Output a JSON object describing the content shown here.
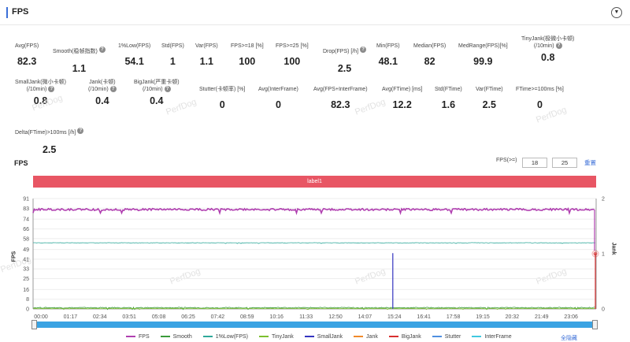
{
  "header": {
    "title": "FPS",
    "collapse_icon": "chevron-down-icon"
  },
  "metrics_row1": [
    {
      "label": "Avg(FPS)",
      "value": "82.3",
      "help": false
    },
    {
      "label": "Smooth(稳帧指数)",
      "value": "1.1",
      "help": true
    },
    {
      "label": "1%Low(FPS)",
      "value": "54.1",
      "help": false
    },
    {
      "label": "Std(FPS)",
      "value": "1",
      "help": false
    },
    {
      "label": "Var(FPS)",
      "value": "1.1",
      "help": false
    },
    {
      "label": "FPS>=18 [%]",
      "value": "100",
      "help": false
    },
    {
      "label": "FPS>=25 [%]",
      "value": "100",
      "help": false
    },
    {
      "label": "Drop(FPS) [/h]",
      "value": "2.5",
      "help": true
    },
    {
      "label": "Min(FPS)",
      "value": "48.1",
      "help": false
    },
    {
      "label": "Median(FPS)",
      "value": "82",
      "help": false
    },
    {
      "label": "MedRange(FPS)[%]",
      "value": "99.9",
      "help": false
    },
    {
      "label": "TinyJank(极微小卡顿)",
      "label2": "(/10min)",
      "value": "0.8",
      "help": true
    }
  ],
  "metrics_row2": [
    {
      "label": "SmallJank(微小卡顿)",
      "label2": "(/10min)",
      "value": "0.8",
      "help": true
    },
    {
      "label": "Jank(卡顿)",
      "label2": "(/10min)",
      "value": "0.4",
      "help": true
    },
    {
      "label": "BigJank(严重卡顿)",
      "label2": "(/10min)",
      "value": "0.4",
      "help": true
    },
    {
      "label": "Stutter(卡顿率) [%]",
      "value": "0",
      "help": false
    },
    {
      "label": "Avg(InterFrame)",
      "value": "0",
      "help": false
    },
    {
      "label": "Avg(FPS+InterFrame)",
      "value": "82.3",
      "help": false
    },
    {
      "label": "Avg(FTime) [ms]",
      "value": "12.2",
      "help": false
    },
    {
      "label": "Std(FTime)",
      "value": "1.6",
      "help": false
    },
    {
      "label": "Var(FTime)",
      "value": "2.5",
      "help": false
    },
    {
      "label": "FTime>=100ms [%]",
      "value": "0",
      "help": false
    }
  ],
  "metrics_row3": [
    {
      "label": "Delta(FTime)>100ms [/h]",
      "value": "2.5",
      "help": true
    }
  ],
  "watermark_text": "PerfDog",
  "chart_section": {
    "title": "FPS",
    "fps_filter_label": "FPS(>=)",
    "fps_filter_min": "18",
    "fps_filter_max": "25",
    "reset_label": "重置",
    "label_band": "label1",
    "hide_all_label": "全隐藏"
  },
  "chart_data": {
    "type": "line",
    "ylabel": "FPS",
    "y2label": "Jank",
    "y_ticks": [
      0,
      8,
      16,
      25,
      33,
      41,
      49,
      58,
      66,
      74,
      83,
      91
    ],
    "y2_ticks": [
      0,
      1,
      2
    ],
    "x_ticks": [
      "00:00",
      "01:17",
      "02:34",
      "03:51",
      "05:08",
      "06:25",
      "07:42",
      "08:59",
      "10:16",
      "11:33",
      "12:50",
      "14:07",
      "15:24",
      "16:41",
      "17:58",
      "19:15",
      "20:32",
      "21:49",
      "23:06"
    ],
    "series": [
      {
        "name": "FPS",
        "color": "#b03fb0",
        "description_value": 82
      },
      {
        "name": "Smooth",
        "color": "#3a9b3a",
        "description_value": 1
      },
      {
        "name": "1%Low(FPS)",
        "color": "#2fa89a",
        "description_value": 54
      },
      {
        "name": "TinyJank",
        "color": "#7cbf2e"
      },
      {
        "name": "SmallJank",
        "color": "#3434c0"
      },
      {
        "name": "Jank",
        "color": "#f08a2a"
      },
      {
        "name": "BigJank",
        "color": "#d83030"
      },
      {
        "name": "Stutter",
        "color": "#4f8fe0"
      },
      {
        "name": "InterFrame",
        "color": "#40c8e0"
      }
    ]
  }
}
